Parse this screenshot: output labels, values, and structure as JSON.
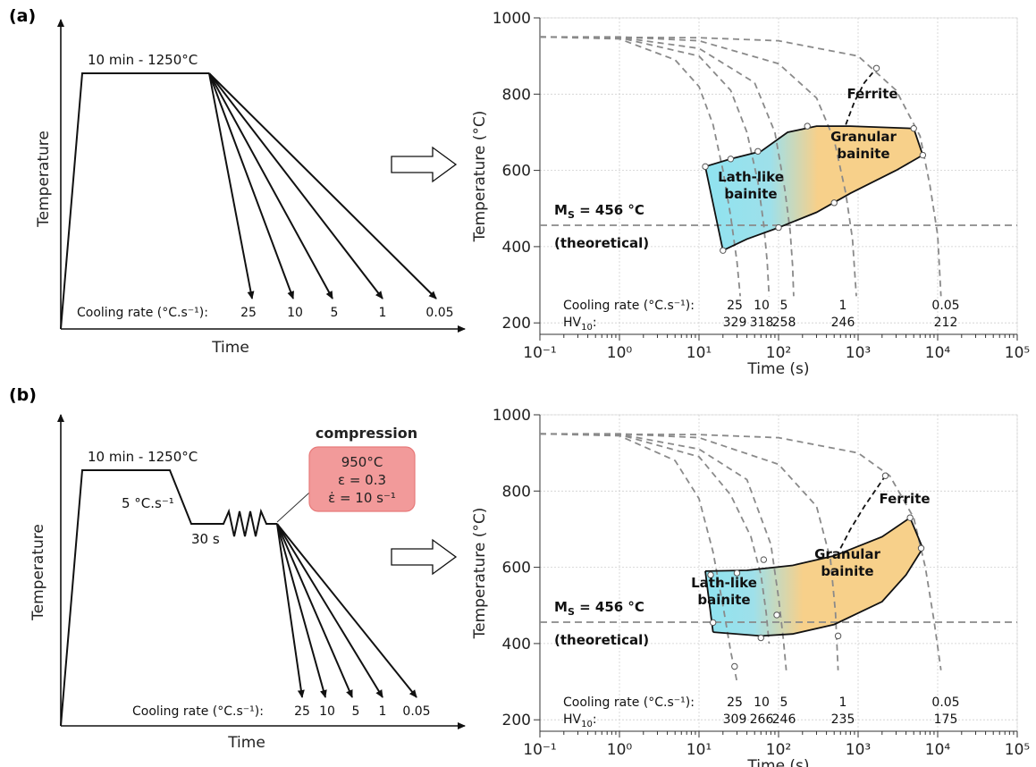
{
  "panels": [
    {
      "label": "(a)",
      "schedule": {
        "hold_label": "10 min - 1250°C",
        "ylabel": "Temperature",
        "xlabel": "Time",
        "cooling_rate_label": "Cooling rate (°C.s⁻¹):",
        "rates": [
          "25",
          "10",
          "5",
          "1",
          "0.05"
        ]
      },
      "chart_data": {
        "type": "line",
        "xlabel": "Time (s)",
        "ylabel": "Temperature (°C)",
        "xscale": "log",
        "xlim": [
          0.1,
          100000
        ],
        "ylim": [
          170,
          1000
        ],
        "xticks": [
          "10⁻¹",
          "10⁰",
          "10¹",
          "10²",
          "10³",
          "10⁴",
          "10⁵"
        ],
        "yticks": [
          200,
          400,
          600,
          800,
          1000
        ],
        "grid": true,
        "ms_line": {
          "value": 456,
          "label": "M",
          "label_sub": "S",
          "label_rest": " = 456 °C",
          "note": "(theoretical)"
        },
        "cooling_curves": [
          {
            "rate": "25",
            "points": [
              [
                0.1,
                950
              ],
              [
                1,
                945
              ],
              [
                5,
                890
              ],
              [
                10,
                820
              ],
              [
                15,
                720
              ],
              [
                20,
                600
              ],
              [
                25,
                480
              ],
              [
                30,
                360
              ],
              [
                33,
                270
              ]
            ]
          },
          {
            "rate": "10",
            "points": [
              [
                0.1,
                950
              ],
              [
                1,
                948
              ],
              [
                10,
                900
              ],
              [
                25,
                810
              ],
              [
                40,
                700
              ],
              [
                55,
                570
              ],
              [
                65,
                460
              ],
              [
                72,
                360
              ],
              [
                76,
                270
              ]
            ]
          },
          {
            "rate": "5",
            "points": [
              [
                0.1,
                950
              ],
              [
                1,
                949
              ],
              [
                10,
                920
              ],
              [
                50,
                830
              ],
              [
                90,
                700
              ],
              [
                120,
                550
              ],
              [
                140,
                440
              ],
              [
                150,
                350
              ],
              [
                155,
                270
              ]
            ]
          },
          {
            "rate": "1",
            "points": [
              [
                0.1,
                950
              ],
              [
                1,
                950
              ],
              [
                10,
                940
              ],
              [
                100,
                880
              ],
              [
                300,
                790
              ],
              [
                500,
                680
              ],
              [
                700,
                540
              ],
              [
                850,
                420
              ],
              [
                950,
                270
              ]
            ]
          },
          {
            "rate": "0.05",
            "points": [
              [
                0.1,
                950
              ],
              [
                10,
                948
              ],
              [
                100,
                940
              ],
              [
                1000,
                900
              ],
              [
                3000,
                810
              ],
              [
                6000,
                690
              ],
              [
                8000,
                560
              ],
              [
                10000,
                430
              ],
              [
                11000,
                270
              ]
            ]
          }
        ],
        "regions": {
          "upper_boundary": [
            [
              12,
              610
            ],
            [
              25,
              630
            ],
            [
              60,
              650
            ],
            [
              130,
              700
            ],
            [
              300,
              716
            ],
            [
              800,
              716
            ],
            [
              5000,
              710
            ],
            [
              6500,
              640
            ]
          ],
          "lower_boundary": [
            [
              20,
              390
            ],
            [
              40,
              420
            ],
            [
              100,
              450
            ],
            [
              300,
              490
            ],
            [
              800,
              540
            ],
            [
              3000,
              600
            ],
            [
              6500,
              640
            ]
          ],
          "left_boundary": [
            [
              12,
              610
            ],
            [
              20,
              390
            ]
          ],
          "ferrite_start": [
            [
              700,
              720
            ],
            [
              900,
              780
            ],
            [
              1200,
              830
            ],
            [
              1700,
              868
            ]
          ]
        },
        "markers": [
          [
            12,
            610
          ],
          [
            25,
            630
          ],
          [
            55,
            650
          ],
          [
            230,
            716
          ],
          [
            5000,
            710
          ],
          [
            6500,
            640
          ],
          [
            1700,
            868
          ],
          [
            20,
            390
          ],
          [
            100,
            450
          ],
          [
            500,
            515
          ]
        ],
        "labels": {
          "lath": "Lath-like\nbainite",
          "granular": "Granular\nbainite",
          "ferrite": "Ferrite"
        },
        "annotations": {
          "cooling_rate_label": "Cooling rate (°C.s⁻¹):",
          "hv_label": "HV",
          "hv_sub": "10",
          "rates": [
            "25",
            "10",
            "5",
            "1",
            "0.05"
          ],
          "hardness": [
            "329",
            "318",
            "258",
            "246",
            "212"
          ]
        }
      }
    },
    {
      "label": "(b)",
      "schedule": {
        "hold_label": "10 min - 1250°C",
        "ylabel": "Temperature",
        "xlabel": "Time",
        "rate_label": "5 °C.s⁻¹",
        "dwell_label": "30 s",
        "compression_title": "compression",
        "compression_lines": [
          "950°C",
          "ε = 0.3",
          "ε̇ = 10 s⁻¹"
        ],
        "cooling_rate_label": "Cooling rate (°C.s⁻¹):",
        "rates": [
          "25",
          "10",
          "5",
          "1",
          "0.05"
        ]
      },
      "chart_data": {
        "type": "line",
        "xlabel": "Time (s)",
        "ylabel": "Temperature (°C)",
        "xscale": "log",
        "xlim": [
          0.1,
          100000
        ],
        "ylim": [
          170,
          1000
        ],
        "xticks": [
          "10⁻¹",
          "10⁰",
          "10¹",
          "10²",
          "10³",
          "10⁴",
          "10⁵"
        ],
        "yticks": [
          200,
          400,
          600,
          800,
          1000
        ],
        "grid": true,
        "ms_line": {
          "value": 456,
          "label": "M",
          "label_sub": "S",
          "label_rest": " = 456 °C",
          "note": "(theoretical)"
        },
        "cooling_curves": [
          {
            "rate": "25",
            "points": [
              [
                0.1,
                950
              ],
              [
                1,
                945
              ],
              [
                5,
                880
              ],
              [
                10,
                780
              ],
              [
                15,
                640
              ],
              [
                20,
                500
              ],
              [
                25,
                380
              ],
              [
                30,
                300
              ]
            ]
          },
          {
            "rate": "10",
            "points": [
              [
                0.1,
                950
              ],
              [
                1,
                948
              ],
              [
                10,
                890
              ],
              [
                25,
                790
              ],
              [
                45,
                680
              ],
              [
                60,
                580
              ],
              [
                70,
                480
              ],
              [
                76,
                400
              ]
            ]
          },
          {
            "rate": "5",
            "points": [
              [
                0.1,
                950
              ],
              [
                1,
                949
              ],
              [
                10,
                910
              ],
              [
                40,
                830
              ],
              [
                80,
                660
              ],
              [
                100,
                520
              ],
              [
                115,
                410
              ],
              [
                125,
                330
              ]
            ]
          },
          {
            "rate": "1",
            "points": [
              [
                0.1,
                950
              ],
              [
                1,
                950
              ],
              [
                10,
                940
              ],
              [
                100,
                870
              ],
              [
                300,
                760
              ],
              [
                450,
                620
              ],
              [
                520,
                480
              ],
              [
                560,
                330
              ]
            ]
          },
          {
            "rate": "0.05",
            "points": [
              [
                0.1,
                950
              ],
              [
                10,
                948
              ],
              [
                100,
                940
              ],
              [
                1000,
                900
              ],
              [
                2500,
                840
              ],
              [
                5000,
                730
              ],
              [
                7000,
                600
              ],
              [
                9000,
                460
              ],
              [
                11000,
                330
              ]
            ]
          }
        ],
        "regions": {
          "upper_boundary": [
            [
              12,
              590
            ],
            [
              40,
              592
            ],
            [
              150,
              605
            ],
            [
              500,
              630
            ],
            [
              2000,
              680
            ],
            [
              4500,
              730
            ],
            [
              6500,
              650
            ]
          ],
          "lower_boundary": [
            [
              15,
              430
            ],
            [
              60,
              420
            ],
            [
              150,
              425
            ],
            [
              500,
              450
            ],
            [
              2000,
              510
            ],
            [
              4000,
              580
            ],
            [
              6500,
              650
            ]
          ],
          "left_boundary": [
            [
              12,
              590
            ],
            [
              15,
              430
            ]
          ],
          "ferrite_start": [
            [
              600,
              650
            ],
            [
              800,
              700
            ],
            [
              1200,
              760
            ],
            [
              2200,
              840
            ]
          ]
        },
        "markers": [
          [
            14,
            580
          ],
          [
            30,
            585
          ],
          [
            65,
            620
          ],
          [
            95,
            475
          ],
          [
            15,
            455
          ],
          [
            60,
            415
          ],
          [
            560,
            420
          ],
          [
            2200,
            840
          ],
          [
            4500,
            730
          ],
          [
            6200,
            650
          ],
          [
            28,
            340
          ]
        ],
        "labels": {
          "lath": "Lath-like\nbainite",
          "granular": "Granular\nbainite",
          "ferrite": "Ferrite"
        },
        "annotations": {
          "cooling_rate_label": "Cooling rate (°C.s⁻¹):",
          "hv_label": "HV",
          "hv_sub": "10",
          "rates": [
            "25",
            "10",
            "5",
            "1",
            "0.05"
          ],
          "hardness": [
            "309",
            "266",
            "246",
            "235",
            "175"
          ]
        }
      }
    }
  ],
  "colors": {
    "lath": "#8fe3f0",
    "granular": "#f7d08a",
    "compression_fill": "#f29a9a",
    "compression_stroke": "#e77a7a"
  }
}
